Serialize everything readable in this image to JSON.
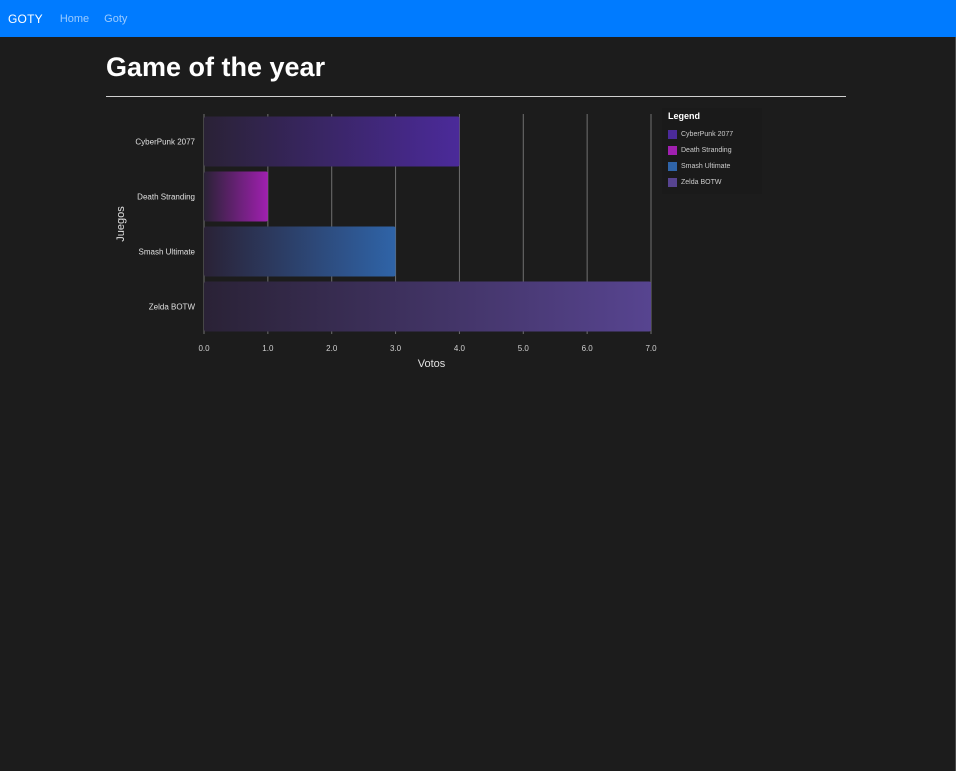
{
  "nav": {
    "brand": "GOTY",
    "links": [
      "Home",
      "Goty"
    ]
  },
  "page": {
    "title": "Game of the year"
  },
  "chart_data": {
    "type": "bar",
    "orientation": "horizontal",
    "categories": [
      "CyberPunk 2077",
      "Death Stranding",
      "Smash Ultimate",
      "Zelda BOTW"
    ],
    "values": [
      4,
      1,
      3,
      7
    ],
    "colors": [
      "#4b2a9a",
      "#a020b0",
      "#2f64a8",
      "#574490"
    ],
    "xlabel": "Votos",
    "ylabel": "Juegos",
    "xlim": [
      0,
      7
    ],
    "xticks": [
      "0.0",
      "1.0",
      "2.0",
      "3.0",
      "4.0",
      "5.0",
      "6.0",
      "7.0"
    ],
    "grid": true,
    "legend": {
      "title": "Legend",
      "position": "top-right"
    }
  }
}
